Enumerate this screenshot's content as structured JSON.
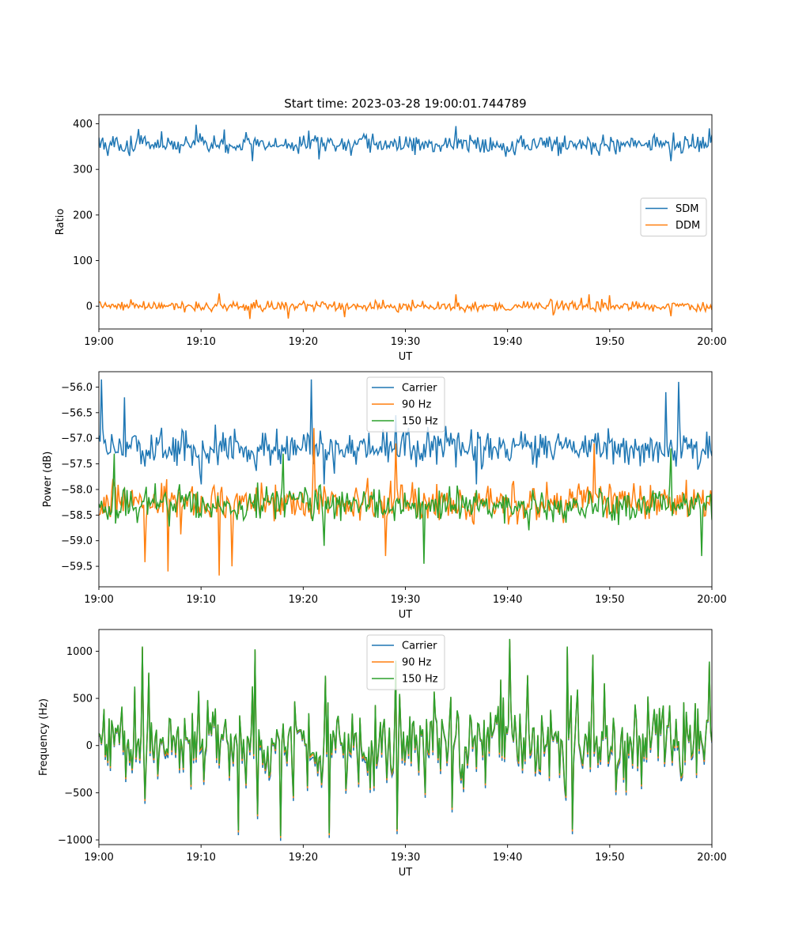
{
  "figure": {
    "title": "Start time: 2023-03-28 19:00:01.744789"
  },
  "chart_data": [
    {
      "type": "line",
      "ylabel": "Ratio",
      "xlabel": "UT",
      "xlim": [
        0,
        60
      ],
      "ylim": [
        -50,
        420
      ],
      "x_ticks": [
        "19:00",
        "19:10",
        "19:20",
        "19:30",
        "19:40",
        "19:50",
        "20:00"
      ],
      "y_ticks": [
        0,
        100,
        200,
        300,
        400
      ],
      "legend_position": "center-right",
      "series": [
        {
          "name": "SDM",
          "color": "#1f77b4",
          "baseline": 355,
          "noise": 18,
          "peaks": [
            [
              9.5,
              398
            ],
            [
              20.5,
              385
            ],
            [
              35.0,
              395
            ],
            [
              59.8,
              390
            ]
          ],
          "troughs": [
            [
              15.0,
              318
            ],
            [
              21.5,
              322
            ],
            [
              56.0,
              318
            ]
          ]
        },
        {
          "name": "DDM",
          "color": "#ff7f0e",
          "baseline": 0,
          "noise": 10,
          "peaks": [
            [
              11.8,
              28
            ],
            [
              35.0,
              26
            ],
            [
              48.0,
              26
            ],
            [
              50.0,
              24
            ]
          ],
          "troughs": [
            [
              14.8,
              -28
            ],
            [
              18.5,
              -27
            ],
            [
              24.0,
              -24
            ],
            [
              56.0,
              -22
            ]
          ]
        }
      ]
    },
    {
      "type": "line",
      "ylabel": "Power (dB)",
      "xlabel": "UT",
      "xlim": [
        0,
        60
      ],
      "ylim": [
        -59.9,
        -55.7
      ],
      "x_ticks": [
        "19:00",
        "19:10",
        "19:20",
        "19:30",
        "19:40",
        "19:50",
        "20:00"
      ],
      "y_ticks": [
        -59.5,
        -59.0,
        -58.5,
        -58.0,
        -57.5,
        -57.0,
        -56.5,
        -56.0
      ],
      "legend_position": "top-center",
      "series": [
        {
          "name": "Carrier",
          "color": "#1f77b4",
          "baseline": -57.2,
          "noise": 0.3,
          "peaks": [
            [
              0.2,
              -55.85
            ],
            [
              2.5,
              -56.2
            ],
            [
              20.8,
              -55.85
            ],
            [
              29.0,
              -56.55
            ],
            [
              55.5,
              -56.1
            ],
            [
              56.8,
              -55.9
            ]
          ],
          "troughs": [
            [
              10.0,
              -57.9
            ],
            [
              22.0,
              -57.9
            ],
            [
              37.0,
              -57.9
            ]
          ]
        },
        {
          "name": "90 Hz",
          "color": "#ff7f0e",
          "baseline": -58.25,
          "noise": 0.32,
          "peaks": [
            [
              21.0,
              -56.8
            ],
            [
              29.0,
              -57.1
            ],
            [
              48.5,
              -57.1
            ]
          ],
          "troughs": [
            [
              4.5,
              -59.42
            ],
            [
              6.8,
              -59.6
            ],
            [
              11.8,
              -59.68
            ],
            [
              13.0,
              -59.5
            ],
            [
              28.0,
              -59.3
            ]
          ]
        },
        {
          "name": "150 Hz",
          "color": "#2ca02c",
          "baseline": -58.3,
          "noise": 0.28,
          "peaks": [
            [
              1.5,
              -57.3
            ],
            [
              18.0,
              -57.3
            ],
            [
              56.0,
              -57.2
            ]
          ],
          "troughs": [
            [
              31.8,
              -59.45
            ],
            [
              59.0,
              -59.3
            ],
            [
              22.0,
              -59.1
            ]
          ]
        }
      ]
    },
    {
      "type": "line",
      "ylabel": "Frequency (Hz)",
      "xlabel": "UT",
      "xlim": [
        0,
        60
      ],
      "ylim": [
        -1050,
        1230
      ],
      "x_ticks": [
        "19:00",
        "19:10",
        "19:20",
        "19:30",
        "19:40",
        "19:50",
        "20:00"
      ],
      "y_ticks": [
        -1000,
        -500,
        0,
        500,
        1000
      ],
      "legend_position": "top-center",
      "series": [
        {
          "name": "Carrier",
          "color": "#1f77b4",
          "offset": -50,
          "noise": 1
        },
        {
          "name": "90 Hz",
          "color": "#ff7f0e",
          "offset": -20,
          "noise": 1
        },
        {
          "name": "150 Hz",
          "color": "#2ca02c",
          "offset": 0,
          "noise": 1,
          "baseline": 30,
          "amplitude": 420,
          "peaks": [
            [
              4.3,
              1050
            ],
            [
              15.3,
              1020
            ],
            [
              29.0,
              900
            ],
            [
              40.2,
              1130
            ],
            [
              45.8,
              1050
            ],
            [
              59.8,
              890
            ]
          ],
          "troughs": [
            [
              13.7,
              -900
            ],
            [
              17.8,
              -960
            ],
            [
              22.6,
              -930
            ],
            [
              29.2,
              -890
            ],
            [
              46.3,
              -890
            ]
          ]
        }
      ]
    }
  ]
}
